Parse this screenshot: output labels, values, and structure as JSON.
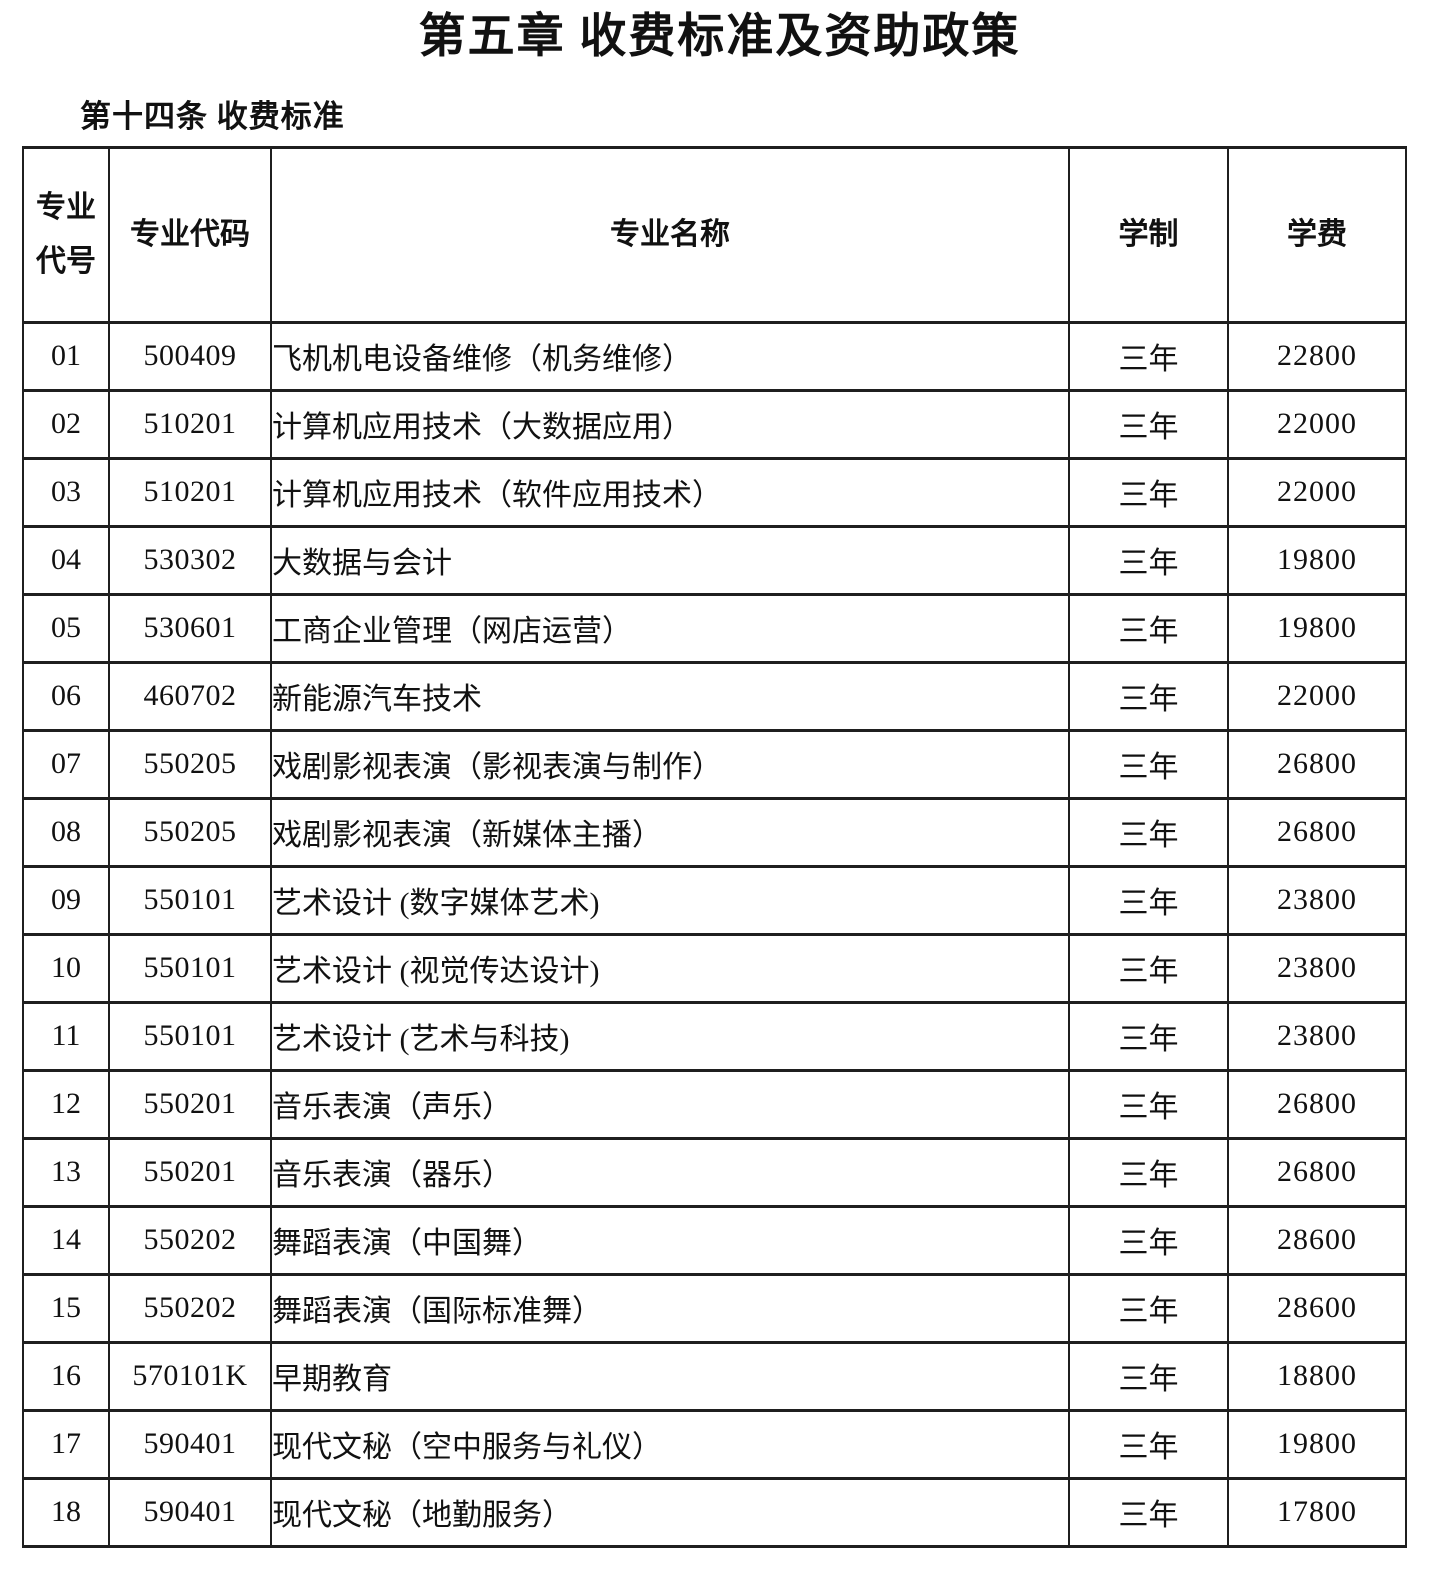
{
  "page": {
    "title": "第五章 收费标准及资助政策",
    "subtitle": "第十四条 收费标准"
  },
  "table": {
    "headers": [
      "专业代号",
      "专业代码",
      "专业名称",
      "学制",
      "学费"
    ],
    "column_names": [
      "major-number-cell",
      "major-code-cell",
      "major-name-cell",
      "duration-cell",
      "tuition-cell"
    ],
    "rows": [
      [
        "01",
        "500409",
        "飞机机电设备维修（机务维修）",
        "三年",
        "22800"
      ],
      [
        "02",
        "510201",
        "计算机应用技术（大数据应用）",
        "三年",
        "22000"
      ],
      [
        "03",
        "510201",
        "计算机应用技术（软件应用技术）",
        "三年",
        "22000"
      ],
      [
        "04",
        "530302",
        "大数据与会计",
        "三年",
        "19800"
      ],
      [
        "05",
        "530601",
        "工商企业管理（网店运营）",
        "三年",
        "19800"
      ],
      [
        "06",
        "460702",
        "新能源汽车技术",
        "三年",
        "22000"
      ],
      [
        "07",
        "550205",
        "戏剧影视表演（影视表演与制作）",
        "三年",
        "26800"
      ],
      [
        "08",
        "550205",
        "戏剧影视表演（新媒体主播）",
        "三年",
        "26800"
      ],
      [
        "09",
        "550101",
        "艺术设计 (数字媒体艺术)",
        "三年",
        "23800"
      ],
      [
        "10",
        "550101",
        "艺术设计 (视觉传达设计)",
        "三年",
        "23800"
      ],
      [
        "11",
        "550101",
        "艺术设计 (艺术与科技)",
        "三年",
        "23800"
      ],
      [
        "12",
        "550201",
        "音乐表演（声乐）",
        "三年",
        "26800"
      ],
      [
        "13",
        "550201",
        "音乐表演（器乐）",
        "三年",
        "26800"
      ],
      [
        "14",
        "550202",
        "舞蹈表演（中国舞）",
        "三年",
        "28600"
      ],
      [
        "15",
        "550202",
        "舞蹈表演（国际标准舞）",
        "三年",
        "28600"
      ],
      [
        "16",
        "570101K",
        "早期教育",
        "三年",
        "18800"
      ],
      [
        "17",
        "590401",
        "现代文秘（空中服务与礼仪）",
        "三年",
        "19800"
      ],
      [
        "18",
        "590401",
        "现代文秘（地勤服务）",
        "三年",
        "17800"
      ]
    ]
  },
  "colors": {
    "text": "#111111",
    "border": "#1f1f1f",
    "background": "#ffffff"
  }
}
